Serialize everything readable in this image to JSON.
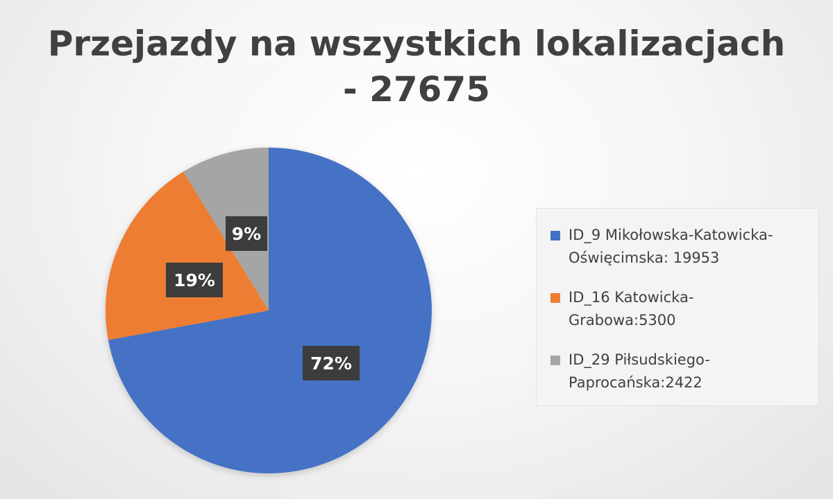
{
  "chart_data": {
    "type": "pie",
    "title": [
      "Przejazdy na wszystkich lokalizacjach",
      "- 27675"
    ],
    "legend_position": "right",
    "slices": [
      {
        "label": [
          "ID_9 Mikołowska-Katowicka-",
          "Oświęcimska: 19953"
        ],
        "value": 19953,
        "percent_label": "72%",
        "color": "#4472C4"
      },
      {
        "label": [
          "ID_16 Katowicka-",
          "Grabowa:5300"
        ],
        "value": 5300,
        "percent_label": "19%",
        "color": "#ED7D31"
      },
      {
        "label": [
          "ID_29 Piłsudskiego-",
          "Paprocańska:2422"
        ],
        "value": 2422,
        "percent_label": "9%",
        "color": "#A5A5A5"
      }
    ]
  }
}
